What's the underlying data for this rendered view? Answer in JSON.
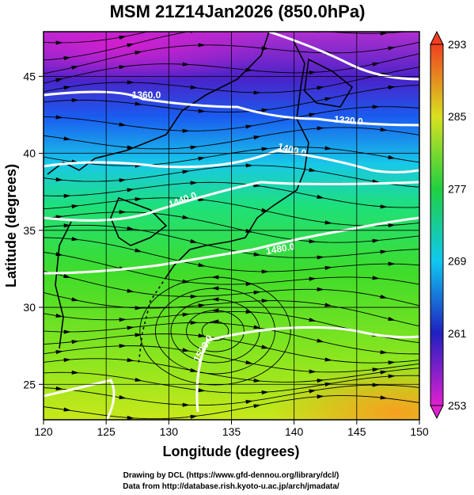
{
  "title": "MSM 21Z14Jan2026 (850.0hPa)",
  "chart_data": {
    "type": "map",
    "xlabel": "Longitude (degrees)",
    "ylabel": "Latitude  (degrees)",
    "xlim": [
      120,
      150
    ],
    "ylim": [
      22.7,
      47.9
    ],
    "xticks": [
      120,
      125,
      130,
      135,
      140,
      145,
      150
    ],
    "yticks": [
      25,
      30,
      35,
      40,
      45
    ],
    "grid": true,
    "colorbar": {
      "lim": [
        253,
        293
      ],
      "ticks": [
        253,
        261,
        269,
        277,
        285,
        293
      ]
    },
    "contour_labels": [
      "1360.0",
      "1320.0",
      "1400.0",
      "1440.0",
      "1480.0",
      "1520.0"
    ]
  },
  "footer": [
    "Drawing by DCL (https://www.gfd-dennou.org/library/dcl/)",
    "Data from http://database.rish.kyoto-u.ac.jp/arch/jmadata/"
  ]
}
